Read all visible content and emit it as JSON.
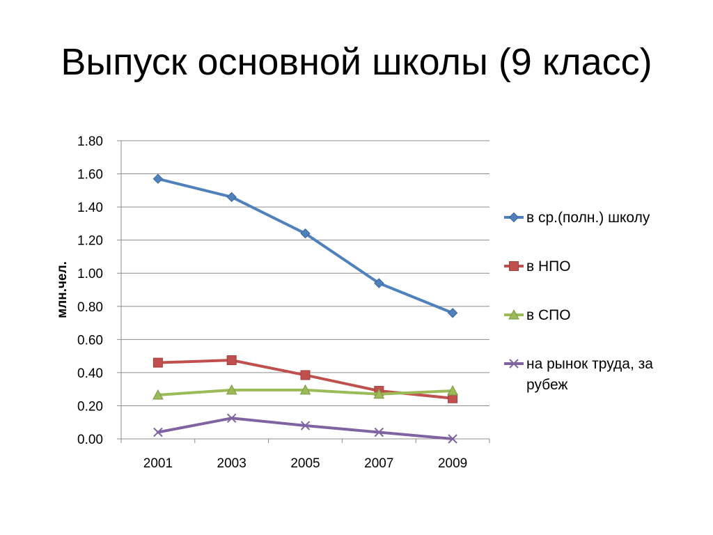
{
  "slide": {
    "title": "Выпуск основной школы (9 класс)"
  },
  "chart_data": {
    "type": "line",
    "title": "",
    "xlabel": "",
    "ylabel": "млн.чел.",
    "ylim": [
      0,
      1.8
    ],
    "y_ticks": [
      "0.00",
      "0.20",
      "0.40",
      "0.60",
      "0.80",
      "1.00",
      "1.20",
      "1.40",
      "1.60",
      "1.80"
    ],
    "categories": [
      "2001",
      "2003",
      "2005",
      "2007",
      "2009"
    ],
    "grid": true,
    "legend_position": "right",
    "series": [
      {
        "name": "в ср.(полн.) школу",
        "values": [
          1.57,
          1.46,
          1.24,
          0.94,
          0.76
        ],
        "color": "#4F81BD",
        "marker": "diamond"
      },
      {
        "name": "в НПО",
        "values": [
          0.46,
          0.475,
          0.385,
          0.29,
          0.245
        ],
        "color": "#C0504D",
        "marker": "square"
      },
      {
        "name": "в СПО",
        "values": [
          0.265,
          0.295,
          0.295,
          0.27,
          0.29
        ],
        "color": "#9BBB59",
        "marker": "triangle"
      },
      {
        "name": "на рынок труда, за рубеж",
        "name_lines": [
          "на рынок труда, за",
          "рубеж"
        ],
        "values": [
          0.04,
          0.125,
          0.08,
          0.04,
          0.0
        ],
        "color": "#8064A2",
        "marker": "x"
      }
    ]
  }
}
